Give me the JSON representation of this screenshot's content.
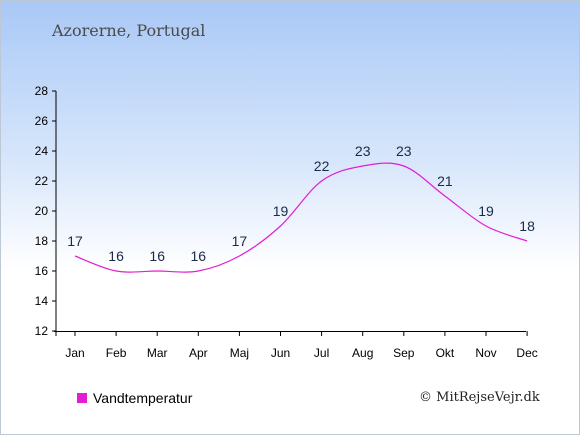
{
  "title": "Azorerne, Portugal",
  "legend": {
    "label": "Vandtemperatur",
    "color": "#e21dd2"
  },
  "copyright": "© MitRejseVejr.dk",
  "colors": {
    "background_top": "#a9c8f6",
    "background_bottom": "#ffffff",
    "line": "#e21dd2",
    "axis": "#000000",
    "data_label": "#1b2a4a"
  },
  "chart_data": {
    "type": "line",
    "title": "Azorerne, Portugal",
    "xlabel": "",
    "ylabel": "",
    "categories": [
      "Jan",
      "Feb",
      "Mar",
      "Apr",
      "Maj",
      "Jun",
      "Jul",
      "Aug",
      "Sep",
      "Okt",
      "Nov",
      "Dec"
    ],
    "series": [
      {
        "name": "Vandtemperatur",
        "values": [
          17,
          16,
          16,
          16,
          17,
          19,
          22,
          23,
          23,
          21,
          19,
          18
        ]
      }
    ],
    "ylim": [
      12,
      28
    ],
    "yticks": [
      12,
      14,
      16,
      18,
      20,
      22,
      24,
      26,
      28
    ],
    "grid": false,
    "legend_position": "bottom-left"
  }
}
